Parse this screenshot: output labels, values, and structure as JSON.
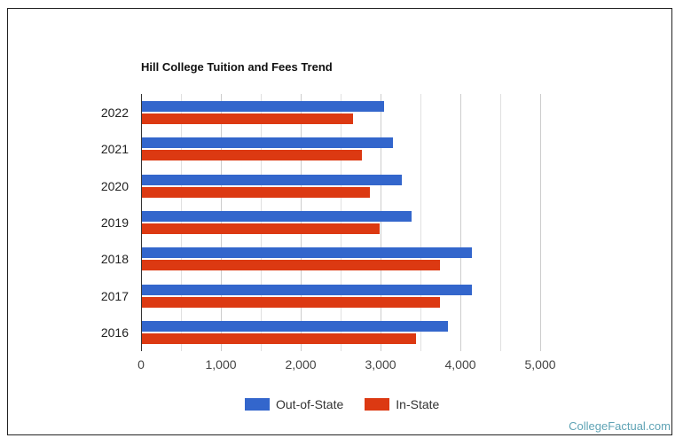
{
  "chart_data": {
    "type": "bar",
    "orientation": "horizontal",
    "title": "Hill College Tuition and Fees Trend",
    "xlabel": "",
    "ylabel": "",
    "categories": [
      "2022",
      "2021",
      "2020",
      "2019",
      "2018",
      "2017",
      "2016"
    ],
    "series": [
      {
        "name": "Out-of-State",
        "color": "#3366cc",
        "values": [
          3030,
          3144,
          3256,
          3378,
          4133,
          4133,
          3833
        ]
      },
      {
        "name": "In-State",
        "color": "#dc3912",
        "values": [
          2644,
          2756,
          2856,
          2978,
          3733,
          3733,
          3433
        ]
      }
    ],
    "xlim": [
      0,
      5000
    ],
    "x_ticks": [
      "0",
      "1,000",
      "2,000",
      "3,000",
      "4,000",
      "5,000"
    ],
    "grid": true,
    "legend_position": "bottom"
  },
  "footer": {
    "source": "CollegeFactual.com"
  }
}
